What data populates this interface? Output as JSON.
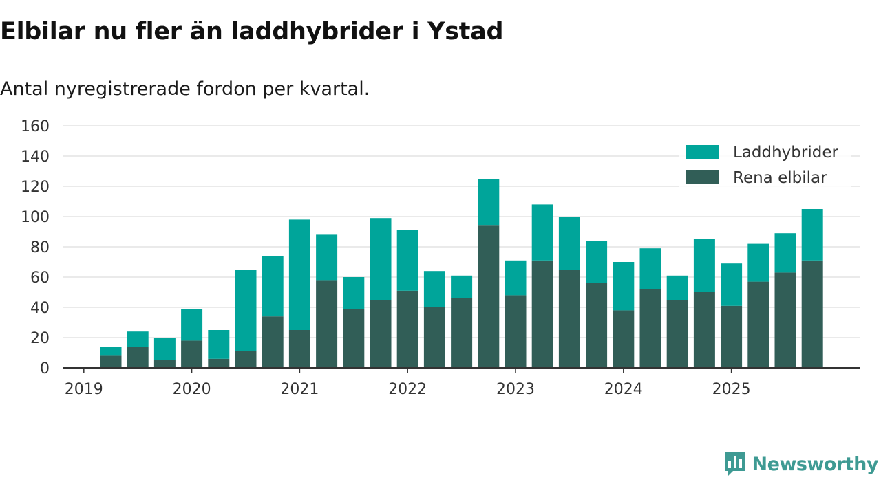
{
  "header": {
    "title": "Elbilar nu fler än laddhybrider i Ystad",
    "subtitle": "Antal nyregistrerade fordon per kvartal."
  },
  "brand": {
    "name": "Newsworthy",
    "icon": "newsworthy-logo-icon"
  },
  "colors": {
    "phev": "#00a59a",
    "bev": "#315e57",
    "grid": "#dddddd",
    "axis": "#333333"
  },
  "chart_data": {
    "type": "bar",
    "stacked": true,
    "title": "Elbilar nu fler än laddhybrider i Ystad",
    "subtitle": "Antal nyregistrerade fordon per kvartal.",
    "xlabel": "",
    "ylabel": "",
    "ylim": [
      0,
      160
    ],
    "yticks": [
      0,
      20,
      40,
      60,
      80,
      100,
      120,
      140,
      160
    ],
    "grid": true,
    "legend_position": "top-right",
    "categories": [
      "2019 Q1",
      "2019 Q2",
      "2019 Q3",
      "2019 Q4",
      "2020 Q1",
      "2020 Q2",
      "2020 Q3",
      "2020 Q4",
      "2021 Q1",
      "2021 Q2",
      "2021 Q3",
      "2021 Q4",
      "2022 Q1",
      "2022 Q2",
      "2022 Q3",
      "2022 Q4",
      "2023 Q1",
      "2023 Q2",
      "2023 Q3",
      "2023 Q4",
      "2024 Q1",
      "2024 Q2",
      "2024 Q3",
      "2024 Q4",
      "2025 Q1",
      "2025 Q2",
      "2025 Q3"
    ],
    "xtick_labels": [
      "2019",
      "2020",
      "2021",
      "2022",
      "2023",
      "2024",
      "2025"
    ],
    "series": [
      {
        "name": "Rena elbilar",
        "color": "#315e57",
        "values": [
          8,
          14,
          5,
          18,
          6,
          11,
          34,
          25,
          58,
          39,
          45,
          51,
          40,
          46,
          94,
          48,
          71,
          65,
          56,
          38,
          52,
          45,
          50,
          41,
          57,
          63,
          71
        ]
      },
      {
        "name": "Laddhybrider",
        "color": "#00a59a",
        "values": [
          6,
          10,
          15,
          21,
          19,
          54,
          40,
          73,
          30,
          21,
          54,
          40,
          24,
          15,
          31,
          23,
          37,
          35,
          28,
          32,
          27,
          16,
          35,
          28,
          25,
          26,
          34
        ]
      }
    ],
    "legend_order": [
      "Laddhybrider",
      "Rena elbilar"
    ]
  }
}
